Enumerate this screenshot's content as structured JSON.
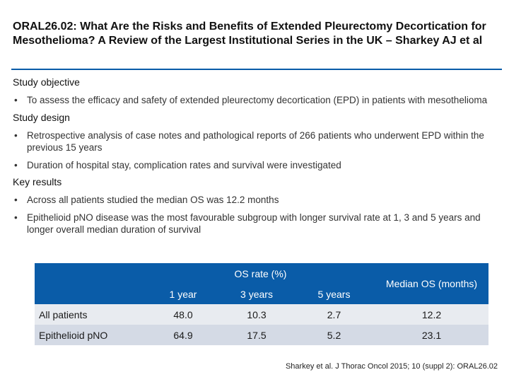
{
  "title": "ORAL26.02: What Are the Risks and Benefits of Extended Pleurectomy Decortication for Mesothelioma? A Review of the Largest Institutional Series in the UK – Sharkey AJ et al",
  "sections": {
    "objective": {
      "heading": "Study objective",
      "bullets": [
        "To assess the efficacy and safety of extended pleurectomy decortication (EPD) in patients with mesothelioma"
      ]
    },
    "design": {
      "heading": "Study design",
      "bullets": [
        "Retrospective analysis of case notes and pathological reports of 266 patients who underwent EPD within the previous 15 years",
        "Duration of hospital stay, complication rates and survival were investigated"
      ]
    },
    "results": {
      "heading": "Key results",
      "bullets": [
        "Across all patients studied the median OS was 12.2 months",
        "Epithelioid pNO disease was the most favourable subgroup with longer survival rate at 1, 3 and 5 years and longer overall median duration of survival"
      ]
    }
  },
  "table": {
    "group_header": "OS rate (%)",
    "col_headers": [
      "1 year",
      "3 years",
      "5 years"
    ],
    "median_header": "Median OS (months)",
    "rows": [
      {
        "label": "All patients",
        "values": [
          "48.0",
          "10.3",
          "2.7",
          "12.2"
        ]
      },
      {
        "label": "Epithelioid pNO",
        "values": [
          "64.9",
          "17.5",
          "5.2",
          "23.1"
        ]
      }
    ]
  },
  "bullet_char": "•",
  "citation": "Sharkey et al. J Thorac Oncol 2015; 10 (suppl 2): ORAL26.02",
  "colors": {
    "accent": "#0a5ca8",
    "row1": "#e8ebf0",
    "row2": "#d4dae5"
  }
}
